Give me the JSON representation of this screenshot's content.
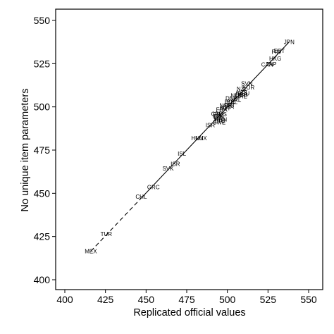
{
  "chart_data": {
    "type": "scatter",
    "title": "",
    "xlabel": "Replicated official values",
    "ylabel": "No unique item parameters",
    "xlim": [
      400,
      550
    ],
    "ylim": [
      400,
      550
    ],
    "x_ticks": [
      400,
      425,
      450,
      475,
      500,
      525,
      550
    ],
    "y_ticks": [
      400,
      425,
      450,
      475,
      500,
      525,
      550
    ],
    "grid": false,
    "legend": "none",
    "colors": {
      "line": "#000000",
      "text": "#000000",
      "frame": "#000000"
    },
    "fit_line": {
      "x": [
        416,
        538
      ],
      "y": [
        416.5,
        537.5
      ],
      "dashed_until_x": 447
    },
    "points": [
      {
        "label": "JPN",
        "x": 538.0,
        "y": 537.5
      },
      {
        "label": "EST",
        "x": 532.0,
        "y": 532.5
      },
      {
        "label": "FIN",
        "x": 530.0,
        "y": 531.8
      },
      {
        "label": "HKG",
        "x": 529.5,
        "y": 528.0
      },
      {
        "label": "CAN",
        "x": 524.5,
        "y": 524.5
      },
      {
        "label": "TAP",
        "x": 527.0,
        "y": 524.7
      },
      {
        "label": "SVN",
        "x": 512.0,
        "y": 513.5
      },
      {
        "label": "KOR",
        "x": 513.0,
        "y": 511.3
      },
      {
        "label": "NZL",
        "x": 509.0,
        "y": 510.5
      },
      {
        "label": "AUS",
        "x": 508.5,
        "y": 508.5
      },
      {
        "label": "DEU",
        "x": 510.0,
        "y": 507.8
      },
      {
        "label": "GBR",
        "x": 508.8,
        "y": 507.0
      },
      {
        "label": "CHE",
        "x": 508.5,
        "y": 506.2
      },
      {
        "label": "NLD",
        "x": 505.5,
        "y": 506.5
      },
      {
        "label": "IRL",
        "x": 505.8,
        "y": 504.0
      },
      {
        "label": "BEL",
        "x": 503.0,
        "y": 503.0
      },
      {
        "label": "DNK",
        "x": 502.5,
        "y": 505.0
      },
      {
        "label": "POL",
        "x": 501.8,
        "y": 503.0
      },
      {
        "label": "PRT",
        "x": 501.5,
        "y": 501.0
      },
      {
        "label": "NOR",
        "x": 499.0,
        "y": 500.8
      },
      {
        "label": "USA",
        "x": 500.5,
        "y": 500.0
      },
      {
        "label": "AUT",
        "x": 498.5,
        "y": 499.3
      },
      {
        "label": "FRA",
        "x": 496.5,
        "y": 498.5
      },
      {
        "label": "CZE",
        "x": 493.5,
        "y": 496.0
      },
      {
        "label": "ESP",
        "x": 494.5,
        "y": 495.5
      },
      {
        "label": "LVA",
        "x": 494.0,
        "y": 494.5
      },
      {
        "label": "RUS",
        "x": 496.0,
        "y": 495.8
      },
      {
        "label": "LUX",
        "x": 495.0,
        "y": 494.0
      },
      {
        "label": "ITA",
        "x": 494.5,
        "y": 493.0
      },
      {
        "label": "HUN",
        "x": 496.0,
        "y": 492.7
      },
      {
        "label": "LTU",
        "x": 495.5,
        "y": 492.0
      },
      {
        "label": "SWE",
        "x": 495.0,
        "y": 491.0
      },
      {
        "label": "ISR",
        "x": 489.5,
        "y": 489.5
      },
      {
        "label": "HUN",
        "x": 481.5,
        "y": 482.0
      },
      {
        "label": "LUX",
        "x": 484.0,
        "y": 482.0
      },
      {
        "label": "ISL",
        "x": 472.0,
        "y": 473.0
      },
      {
        "label": "ISR",
        "x": 468.0,
        "y": 467.0
      },
      {
        "label": "SVK",
        "x": 463.5,
        "y": 464.5
      },
      {
        "label": "GRC",
        "x": 454.5,
        "y": 453.5
      },
      {
        "label": "CHL",
        "x": 447.0,
        "y": 448.0
      },
      {
        "label": "TUR",
        "x": 425.5,
        "y": 426.5
      },
      {
        "label": "MEX",
        "x": 416.0,
        "y": 416.5
      }
    ]
  }
}
